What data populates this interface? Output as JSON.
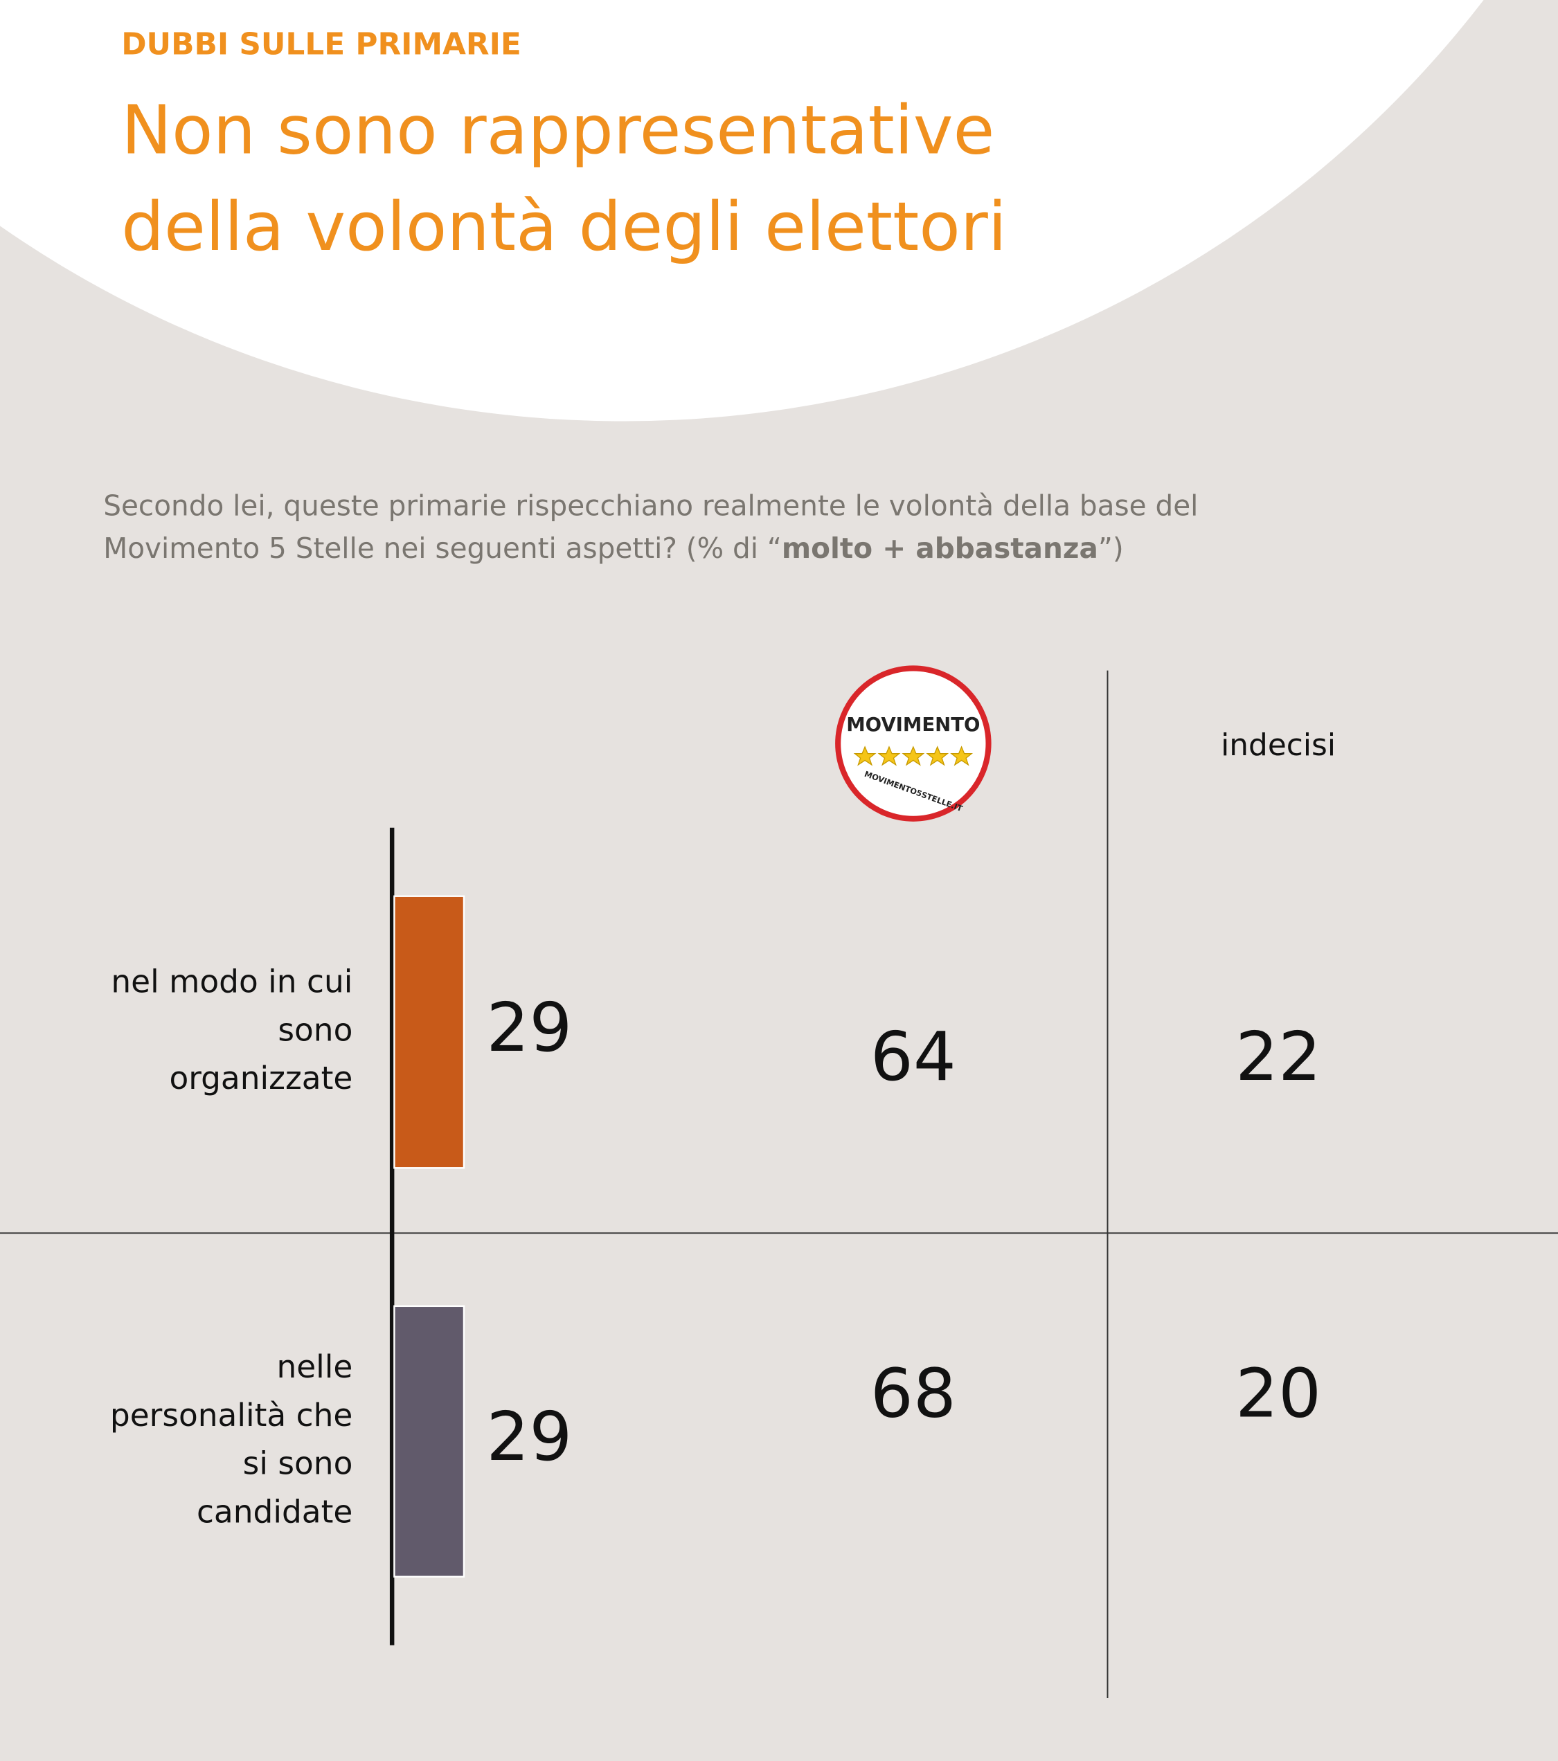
{
  "chart_data": {
    "type": "bar",
    "kicker": "DUBBI SULLE PRIMARIE",
    "title": [
      "Non sono rappresentative",
      "della volontà degli elettori"
    ],
    "subtitle": [
      "Secondo lei, queste primarie rispecchiano realmente le volontà della base del",
      "Movimento 5 Stelle nei seguenti aspetti? (% di “",
      "molto + abbastanza",
      "”)"
    ],
    "categories": [
      [
        "nel modo in cui",
        "sono",
        "organizzate"
      ],
      [
        "nelle",
        "personalità che",
        "si sono",
        "candidate"
      ]
    ],
    "values": [
      29,
      29
    ],
    "colors": [
      "#c85a19",
      "#615a6b"
    ],
    "columns": [
      {
        "logo_text": "MOVIMENTO",
        "logo_url": "MOVIMENTO5STELLE.IT",
        "values": [
          64,
          68
        ]
      },
      {
        "name": "indecisi",
        "values": [
          22,
          20
        ]
      }
    ]
  }
}
